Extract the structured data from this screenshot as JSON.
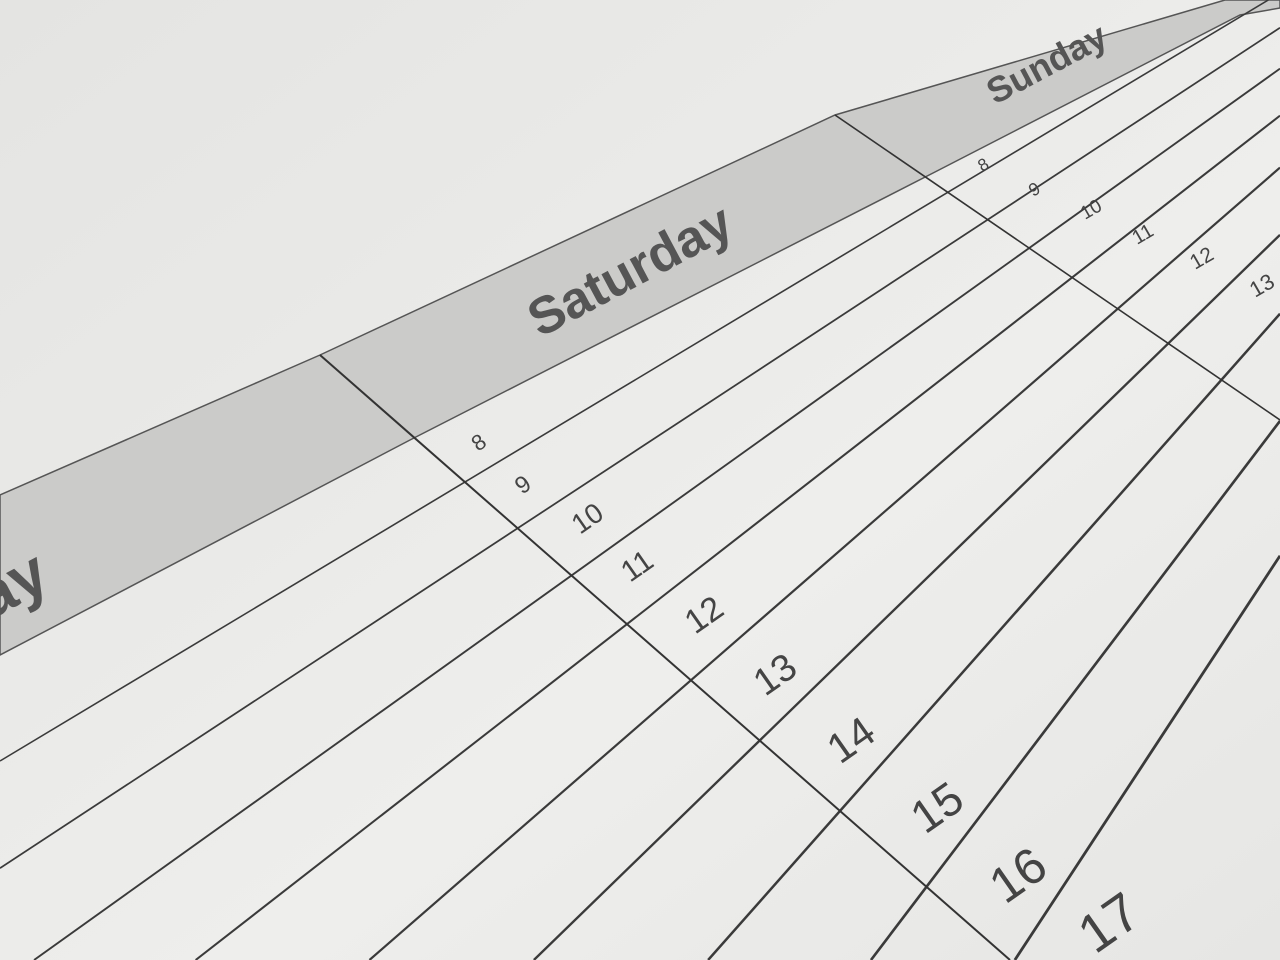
{
  "calendar": {
    "days": [
      {
        "label": "ay"
      },
      {
        "label": "Saturday"
      },
      {
        "label": "Sunday"
      }
    ],
    "saturday_hours": [
      "8",
      "9",
      "10",
      "11",
      "12",
      "13",
      "14",
      "15",
      "16",
      "17"
    ],
    "sunday_hours": [
      "8",
      "9",
      "10",
      "11",
      "12",
      "13"
    ]
  },
  "colors": {
    "paper": "#ececea",
    "header_band": "#c9c9c7",
    "lines": "#3c3c3c",
    "text": "#555555"
  }
}
